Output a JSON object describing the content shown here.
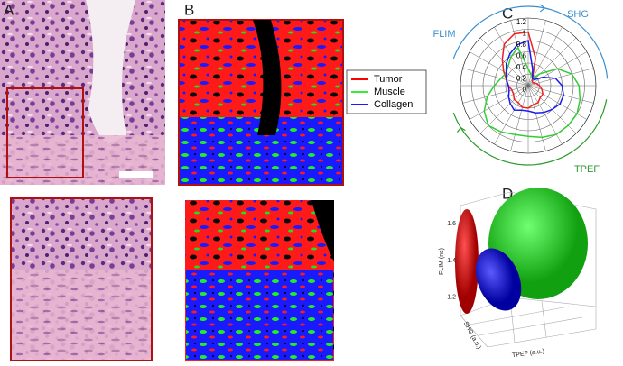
{
  "panels": {
    "a": "A",
    "b": "B",
    "c": "C",
    "d": "D"
  },
  "legend": [
    {
      "name": "Tumor",
      "color": "#ff0000"
    },
    {
      "name": "Muscle",
      "color": "#33ee33"
    },
    {
      "name": "Collagen",
      "color": "#1a1aff"
    }
  ],
  "chart_data": [
    {
      "type": "polar",
      "arc_labels": [
        "SHG",
        "FLIM",
        "TPEF"
      ],
      "arc_colors": [
        "#3a8fd0",
        "#3a8fd0",
        "#2a9a2a"
      ],
      "rlim": [
        0,
        1.2
      ],
      "rticks": [
        0,
        0.2,
        0.4,
        0.6,
        0.8,
        1,
        1.2
      ],
      "theta": [
        0,
        15,
        30,
        45,
        60,
        75,
        90,
        105,
        120,
        135,
        150,
        165,
        180,
        195,
        210,
        225,
        240,
        255,
        270,
        285,
        300,
        315,
        330,
        345
      ],
      "series": [
        {
          "color": "#ee2020",
          "values": [
            0.95,
            0.5,
            0.15,
            0.1,
            0.1,
            0.15,
            0.2,
            0.25,
            0.3,
            0.3,
            0.35,
            0.35,
            0.4,
            0.4,
            0.35,
            0.35,
            0.3,
            0.3,
            0.35,
            0.4,
            0.5,
            0.65,
            0.85,
            0.95
          ]
        },
        {
          "color": "#33cc33",
          "values": [
            0.3,
            0.2,
            0.15,
            0.3,
            0.6,
            0.8,
            0.9,
            0.95,
            1.0,
            1.0,
            1.0,
            0.95,
            0.9,
            0.9,
            0.95,
            1.0,
            0.9,
            0.75,
            0.6,
            0.5,
            0.45,
            0.5,
            0.6,
            0.7
          ]
        },
        {
          "color": "#1a1aee",
          "values": [
            0.8,
            0.3,
            0.15,
            0.15,
            0.3,
            0.5,
            0.6,
            0.65,
            0.65,
            0.6,
            0.55,
            0.5,
            0.45,
            0.45,
            0.5,
            0.45,
            0.4,
            0.35,
            0.35,
            0.4,
            0.45,
            0.55,
            0.65,
            0.75
          ]
        }
      ]
    },
    {
      "type": "scatter3d",
      "xlabel": "TPEF (a.u.)",
      "ylabel": "SHG (a.u.)",
      "zlabel": "FLIM (ns)",
      "zlim": [
        1.1,
        1.7
      ],
      "zticks": [
        1.2,
        1.4,
        1.6
      ]
    }
  ]
}
